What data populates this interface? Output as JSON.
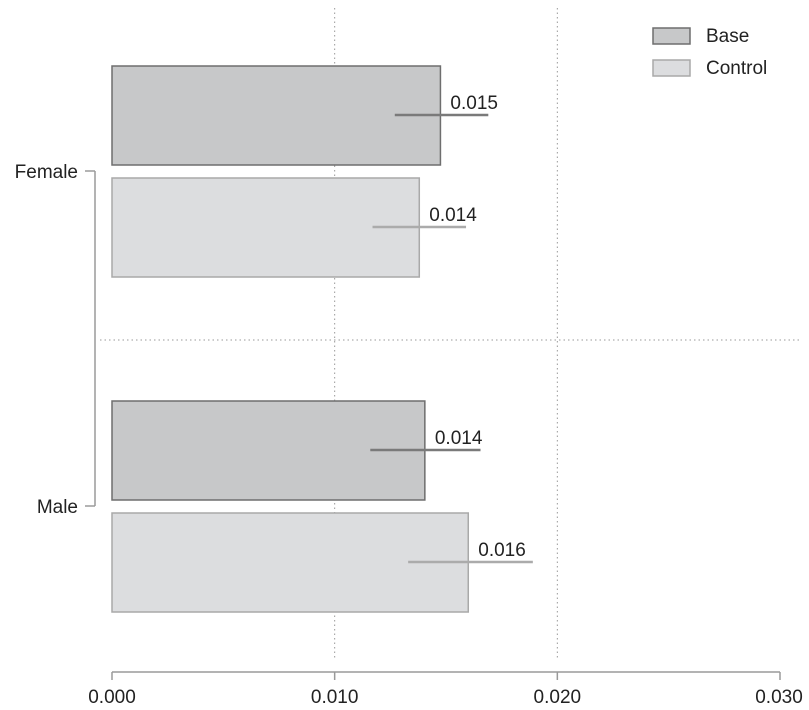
{
  "chart_data": {
    "type": "bar",
    "orientation": "horizontal",
    "categories": [
      "Female",
      "Male"
    ],
    "series": [
      {
        "name": "Base",
        "values": [
          0.01475,
          0.01405
        ],
        "error_low": [
          0.0127,
          0.0116
        ],
        "error_high": [
          0.0169,
          0.01655
        ],
        "labels": [
          "0.015",
          "0.014"
        ]
      },
      {
        "name": "Control",
        "values": [
          0.0138,
          0.016
        ],
        "error_low": [
          0.0117,
          0.0133
        ],
        "error_high": [
          0.0159,
          0.0189
        ],
        "labels": [
          "0.014",
          "0.016"
        ]
      }
    ],
    "xlim": [
      0,
      0.03
    ],
    "xticks": [
      "0.000",
      "0.010",
      "0.020",
      "0.030"
    ],
    "xtick_values": [
      0,
      0.01,
      0.02,
      0.03
    ],
    "title": "",
    "xlabel": "",
    "ylabel": "",
    "grid": "dotted vertical at major ticks; dotted separator between groups",
    "legend_position": "top-right",
    "colors": {
      "Base": "#c7c8c9",
      "Base_edge": "#6e6e6e",
      "Base_error": "#7a7a7a",
      "Control": "#dcdddf",
      "Control_edge": "#a9a9a9",
      "Control_error": "#ababab",
      "axis": "#9a9a9a",
      "grid": "#9a9a9a"
    }
  }
}
